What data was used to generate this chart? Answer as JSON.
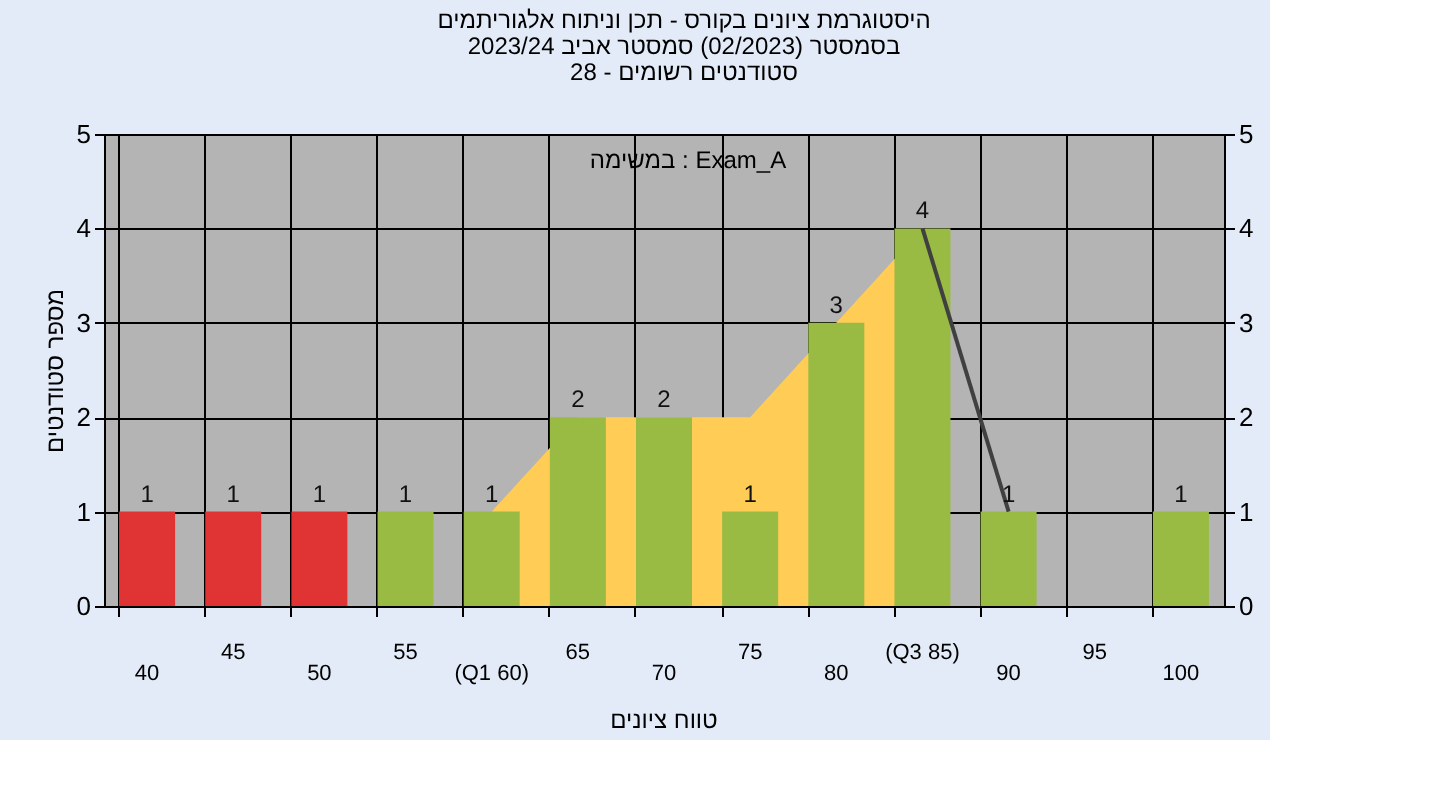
{
  "chart_data": {
    "type": "bar",
    "title": "היסטוגרמת ציונים בקורס - תכן וניתוח אלגוריתמים",
    "subtitle": [
      "בסמסטר  (02/2023)  סמסטר אביב 2023/24",
      "סטודנטים רשומים - 28"
    ],
    "xlabel": "טווח ציונים",
    "ylabel": "מספר סטודנטים",
    "annotations": [
      "במשימה : Exam_A"
    ],
    "categories": [
      "40",
      "45",
      "50",
      "55",
      "(Q1 60)",
      "65",
      "70",
      "75",
      "80",
      "(Q3 85)",
      "90",
      "95",
      "100"
    ],
    "series": [
      {
        "type": "area",
        "color": "#ffcc55",
        "values": [
          null,
          null,
          null,
          null,
          1,
          2,
          2,
          2,
          3,
          4,
          null,
          null,
          null
        ]
      },
      {
        "values": [
          1,
          1,
          1,
          1,
          1,
          2,
          2,
          1,
          3,
          4,
          1,
          null,
          1
        ],
        "value_labels": [
          "1",
          "1",
          "1",
          "1",
          "1",
          "2",
          "2",
          "1",
          "3",
          "4",
          "1",
          null,
          "1"
        ],
        "colors": [
          "#e03333",
          "#e03333",
          "#e03333",
          "#99bb44",
          "#99bb44",
          "#99bb44",
          "#99bb44",
          "#99bb44",
          "#99bb44",
          "#99bb44",
          "#99bb44",
          "#99bb44",
          "#99bb44"
        ]
      },
      {
        "type": "line",
        "color": "#404040",
        "values": [
          null,
          null,
          null,
          null,
          null,
          null,
          null,
          null,
          null,
          4,
          1,
          null,
          null
        ]
      }
    ],
    "ylim": [
      0,
      5
    ],
    "yticks": [
      0,
      1,
      2,
      3,
      4,
      5
    ],
    "y2lim": [
      0,
      5
    ],
    "y2ticks": [
      0,
      1,
      2,
      3,
      4,
      5
    ],
    "grid": true,
    "legend": false
  }
}
